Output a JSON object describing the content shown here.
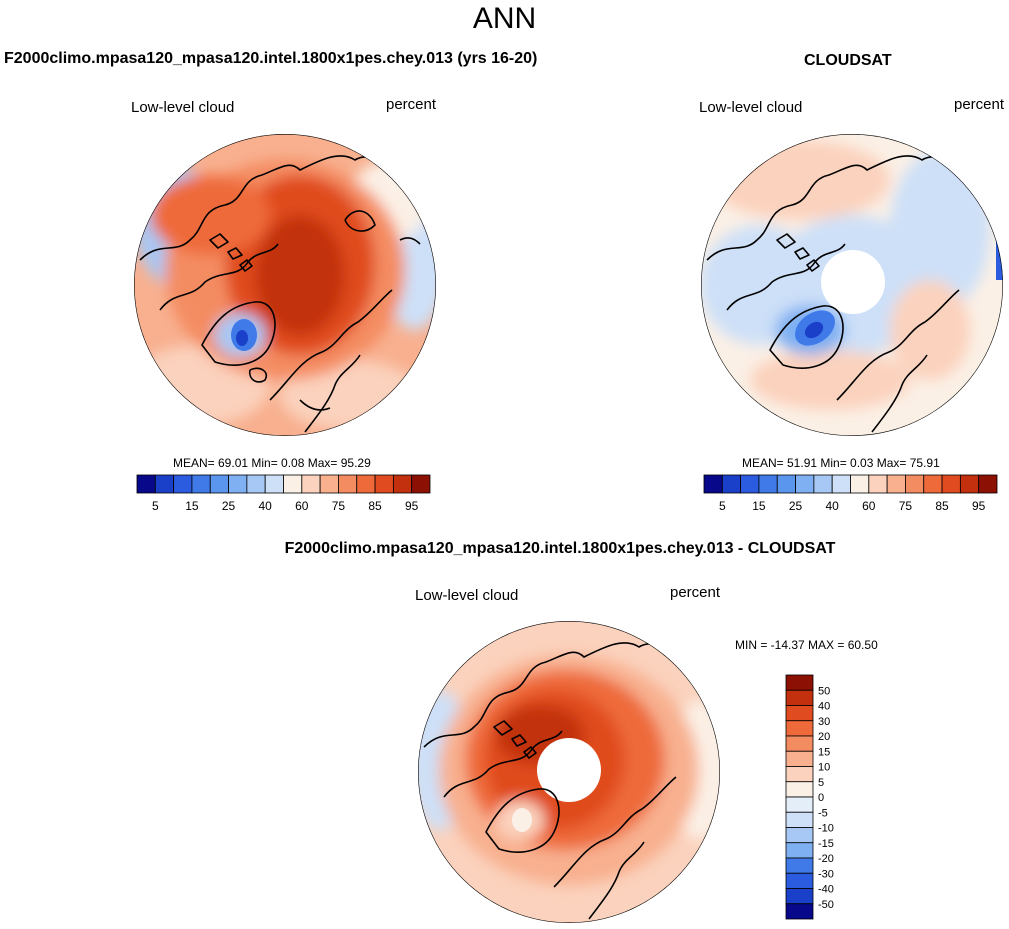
{
  "figure": {
    "main_title": "ANN",
    "panel_left_title": "F2000climo.mpasa120_mpasa120.intel.1800x1pes.chey.013 (yrs 16-20)",
    "panel_right_title": "CLOUDSAT",
    "panel_diff_title": "F2000climo.mpasa120_mpasa120.intel.1800x1pes.chey.013 - CLOUDSAT"
  },
  "chart_data": [
    {
      "type": "heatmap",
      "projection": "north polar stereographic",
      "title": "F2000climo.mpasa120_mpasa120.intel.1800x1pes.chey.013 (yrs 16-20)",
      "variable": "Low-level cloud",
      "units": "percent",
      "stats_text": "MEAN=  69.01  Min=   0.08  Max=  95.29",
      "stats": {
        "mean": 69.01,
        "min": 0.08,
        "max": 95.29
      },
      "colorbar": {
        "orientation": "horizontal",
        "levels": [
          5,
          10,
          15,
          20,
          25,
          30,
          40,
          50,
          60,
          65,
          75,
          80,
          85,
          90,
          95
        ],
        "tick_labels": [
          "5",
          "15",
          "25",
          "40",
          "60",
          "75",
          "85",
          "95"
        ],
        "colors": [
          "#08088a",
          "#1a3fc8",
          "#2b5ce0",
          "#3f7ae8",
          "#5a95ee",
          "#7fb0f2",
          "#a7c8f4",
          "#cde0f8",
          "#fbf0e6",
          "#fbd2bd",
          "#f8b08f",
          "#f48c62",
          "#ee6a3a",
          "#e04c1f",
          "#c2300e",
          "#8c1004"
        ]
      }
    },
    {
      "type": "heatmap",
      "projection": "north polar stereographic",
      "title": "CLOUDSAT",
      "variable": "Low-level cloud",
      "units": "percent",
      "stats_text": "MEAN=  51.91  Min=   0.03  Max=  75.91",
      "stats": {
        "mean": 51.91,
        "min": 0.03,
        "max": 75.91
      },
      "colorbar": {
        "orientation": "horizontal",
        "levels": [
          5,
          10,
          15,
          20,
          25,
          30,
          40,
          50,
          60,
          65,
          75,
          80,
          85,
          90,
          95
        ],
        "tick_labels": [
          "5",
          "15",
          "25",
          "40",
          "60",
          "75",
          "85",
          "95"
        ],
        "colors": [
          "#08088a",
          "#1a3fc8",
          "#2b5ce0",
          "#3f7ae8",
          "#5a95ee",
          "#7fb0f2",
          "#a7c8f4",
          "#cde0f8",
          "#fbf0e6",
          "#fbd2bd",
          "#f8b08f",
          "#f48c62",
          "#ee6a3a",
          "#e04c1f",
          "#c2300e",
          "#8c1004"
        ]
      }
    },
    {
      "type": "heatmap",
      "projection": "north polar stereographic",
      "title": "F2000climo.mpasa120_mpasa120.intel.1800x1pes.chey.013 - CLOUDSAT",
      "variable": "Low-level cloud",
      "units": "percent",
      "stats_text": "MIN = -14.37 MAX =  60.50",
      "stats": {
        "min": -14.37,
        "max": 60.5
      },
      "colorbar": {
        "orientation": "vertical",
        "tick_labels": [
          "50",
          "40",
          "30",
          "20",
          "15",
          "10",
          "5",
          "0",
          "-5",
          "-10",
          "-15",
          "-20",
          "-30",
          "-40",
          "-50"
        ],
        "colors": [
          "#8c1004",
          "#c2300e",
          "#e04c1f",
          "#ee6a3a",
          "#f48c62",
          "#f8b08f",
          "#fbd2bd",
          "#fbf0e6",
          "#e4eef9",
          "#cde0f8",
          "#a7c8f4",
          "#7fb0f2",
          "#3f7ae8",
          "#2b5ce0",
          "#1a3fc8",
          "#08088a"
        ]
      }
    }
  ]
}
